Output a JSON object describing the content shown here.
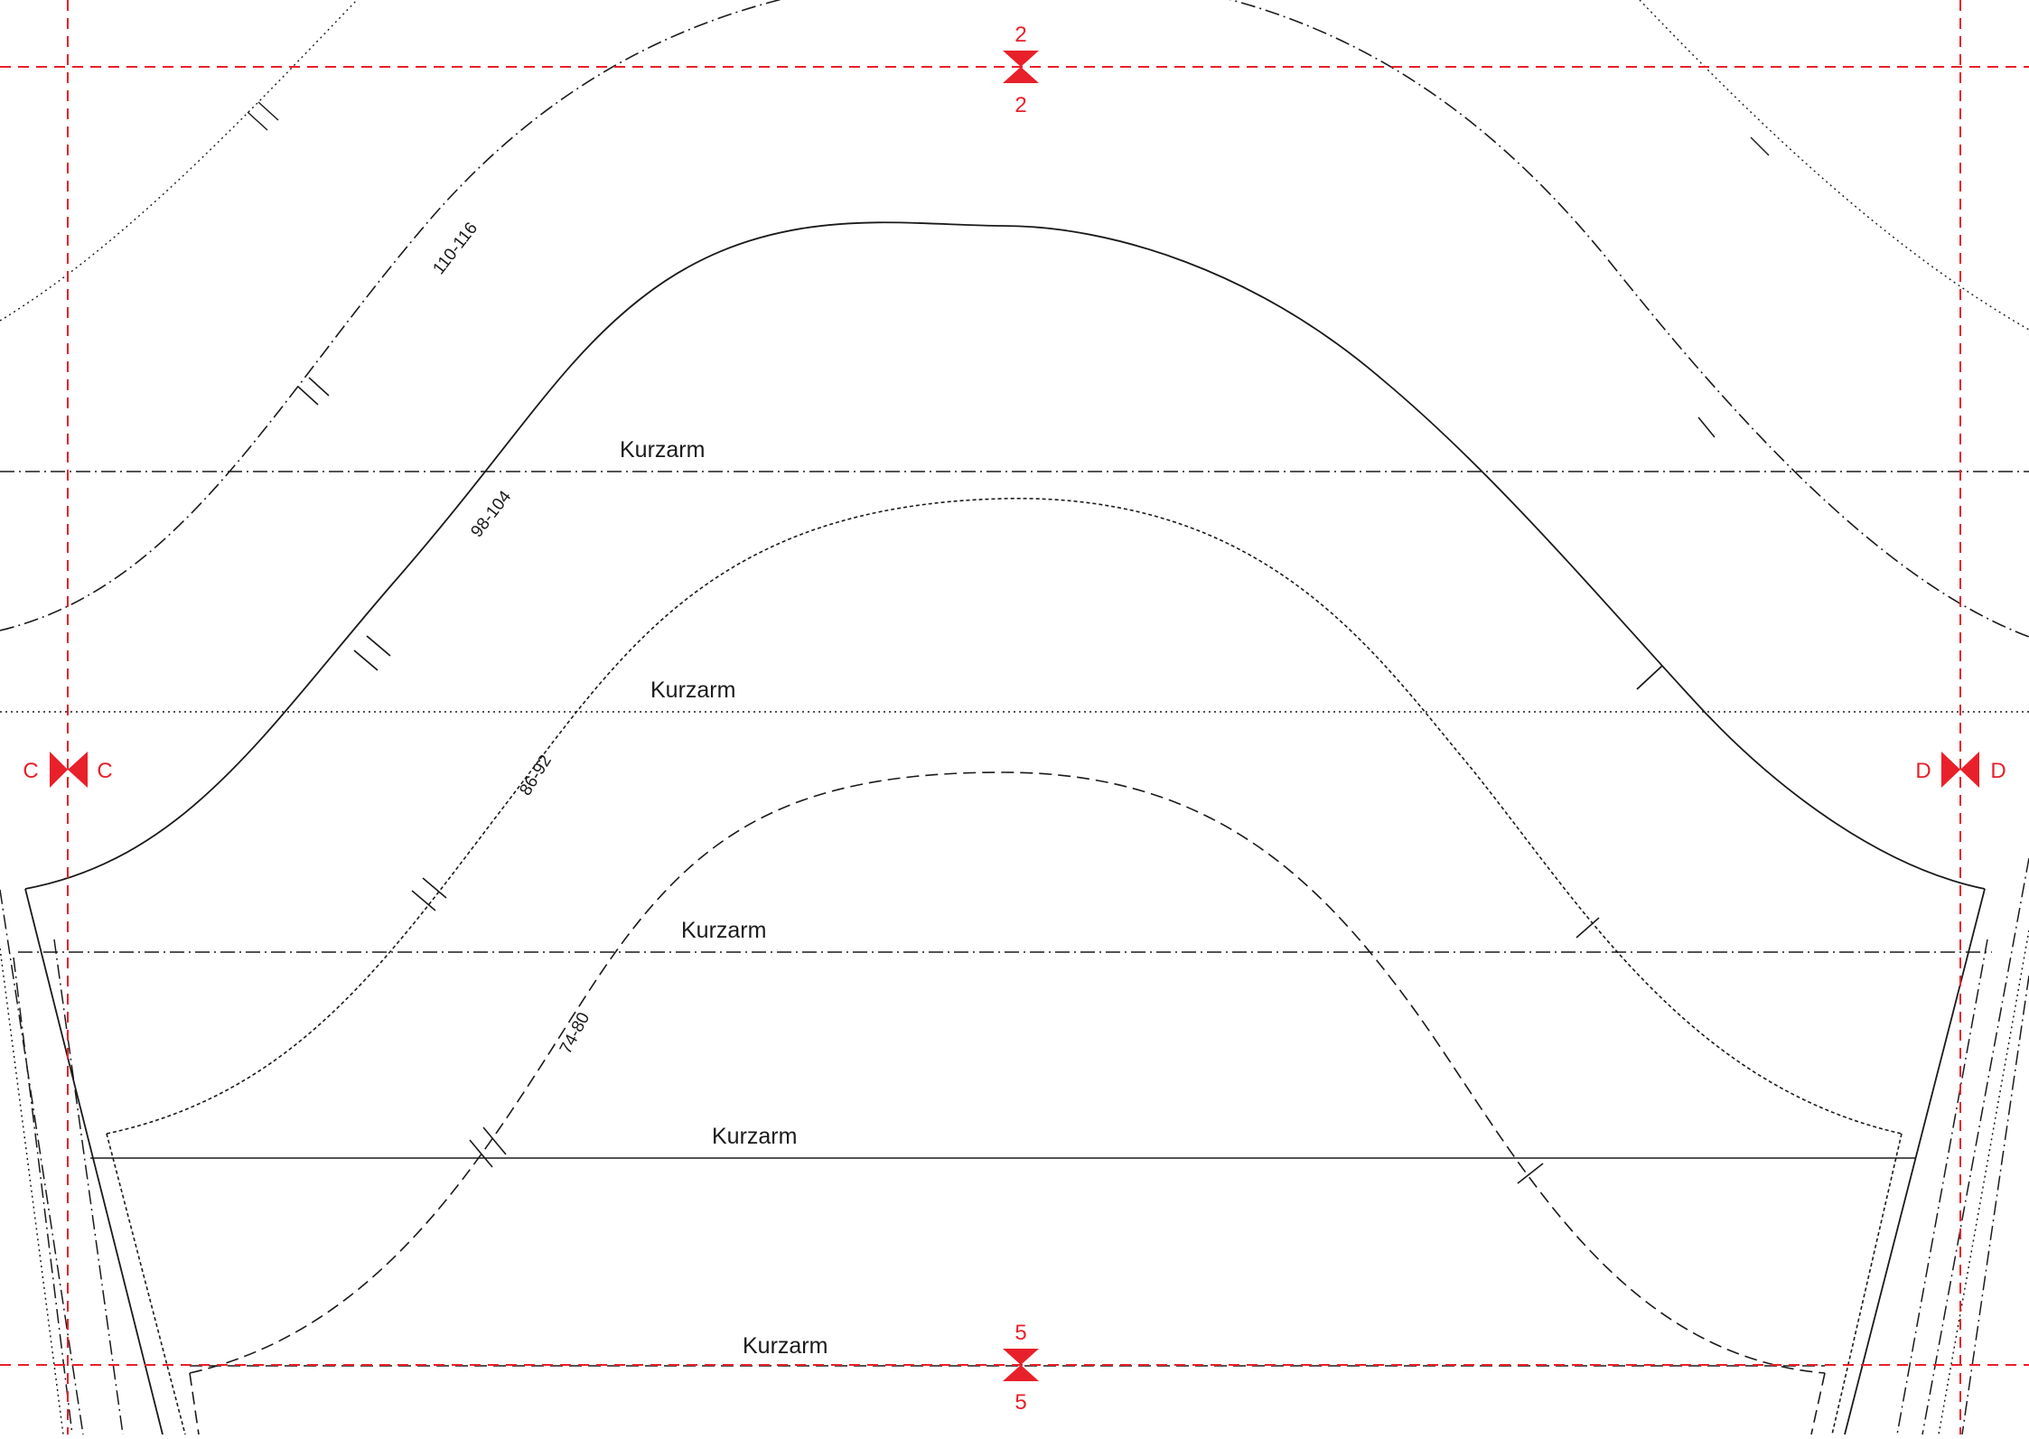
{
  "colors": {
    "guide": "#e8202a",
    "line": "#1a1a1a",
    "paper": "#ffffff"
  },
  "marks": {
    "top_upper": "2",
    "top_lower": "2",
    "left_a": "C",
    "left_b": "C",
    "right_a": "D",
    "right_b": "D",
    "bottom_upper": "5",
    "bottom_lower": "5"
  },
  "lines": [
    {
      "label": "Kurzarm",
      "style": "dash-dot"
    },
    {
      "label": "Kurzarm",
      "style": "dotted"
    },
    {
      "label": "Kurzarm",
      "style": "dash-dot"
    },
    {
      "label": "Kurzarm",
      "style": "solid"
    },
    {
      "label": "Kurzarm",
      "style": "dashed"
    }
  ],
  "sizes": [
    "110-116",
    "98-104",
    "86-92",
    "74-80"
  ]
}
